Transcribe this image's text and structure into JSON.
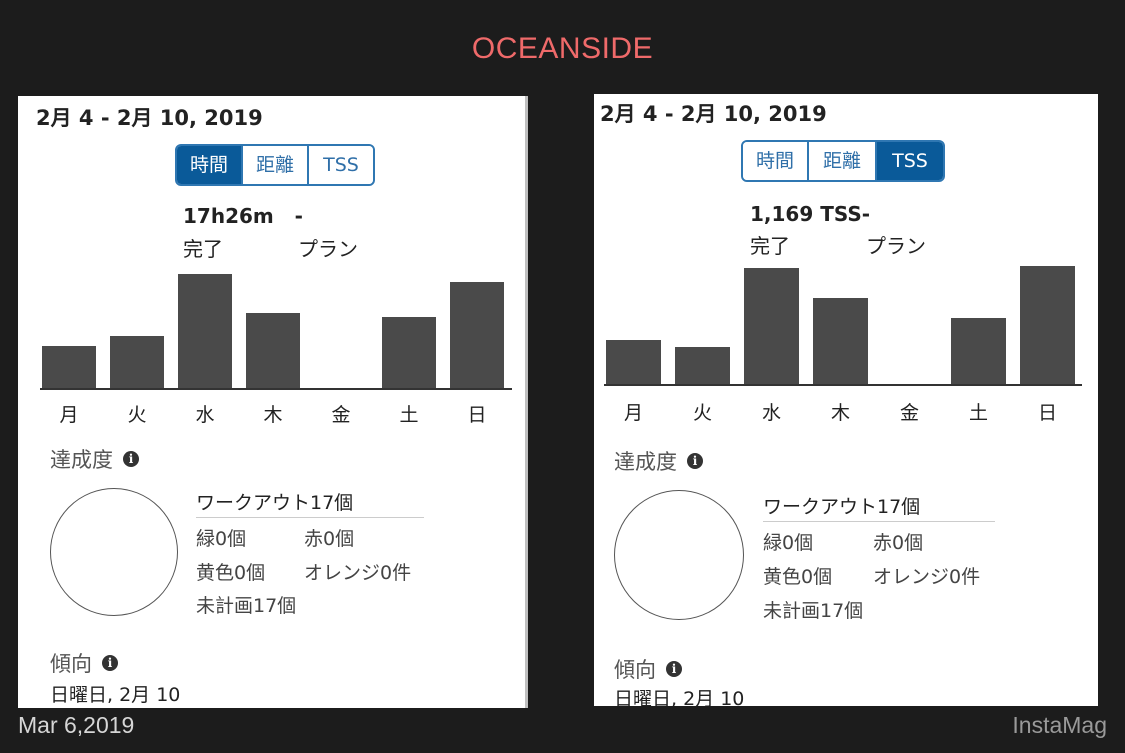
{
  "title": "OCEANSIDE",
  "footer": {
    "date": "Mar 6,2019",
    "brand": "InstaMag"
  },
  "panels": [
    {
      "date_range": "2月 4 - 2月 10, 2019",
      "tabs": [
        {
          "label": "時間",
          "active": true
        },
        {
          "label": "距離",
          "active": false
        },
        {
          "label": "TSS",
          "active": false
        }
      ],
      "summary": {
        "completed_value": "17h26m   -",
        "completed_label": "完了",
        "plan_label": "プラン"
      },
      "chart_data": {
        "type": "bar",
        "categories": [
          "月",
          "火",
          "水",
          "木",
          "金",
          "土",
          "日"
        ],
        "values": [
          0.37,
          0.46,
          1.0,
          0.66,
          0,
          0.62,
          0.93
        ],
        "title": "",
        "xlabel": "",
        "ylabel": ""
      },
      "achievement": {
        "title": "達成度",
        "workouts": "ワークアウト17個",
        "green": "緑0個",
        "red": "赤0個",
        "yellow": "黄色0個",
        "orange": "オレンジ0件",
        "unplanned": "未計画17個"
      },
      "trend": {
        "title": "傾向",
        "value": "日曜日, 2月 10"
      }
    },
    {
      "date_range": "2月 4 - 2月 10, 2019",
      "tabs": [
        {
          "label": "時間",
          "active": false
        },
        {
          "label": "距離",
          "active": false
        },
        {
          "label": "TSS",
          "active": true
        }
      ],
      "summary": {
        "completed_value": "1,169 TSS-",
        "completed_label": "完了",
        "plan_label": "プラン"
      },
      "chart_data": {
        "type": "bar",
        "categories": [
          "月",
          "火",
          "水",
          "木",
          "金",
          "土",
          "日"
        ],
        "values": [
          0.38,
          0.32,
          1.0,
          0.74,
          0,
          0.57,
          1.02
        ],
        "title": "",
        "xlabel": "",
        "ylabel": ""
      },
      "achievement": {
        "title": "達成度",
        "workouts": "ワークアウト17個",
        "green": "緑0個",
        "red": "赤0個",
        "yellow": "黄色0個",
        "orange": "オレンジ0件",
        "unplanned": "未計画17個"
      },
      "trend": {
        "title": "傾向",
        "value": "日曜日, 2月 10"
      }
    }
  ],
  "colors": {
    "title": "#ef6a6a",
    "accent": "#0a5a99",
    "bar": "#4a4a4a"
  }
}
